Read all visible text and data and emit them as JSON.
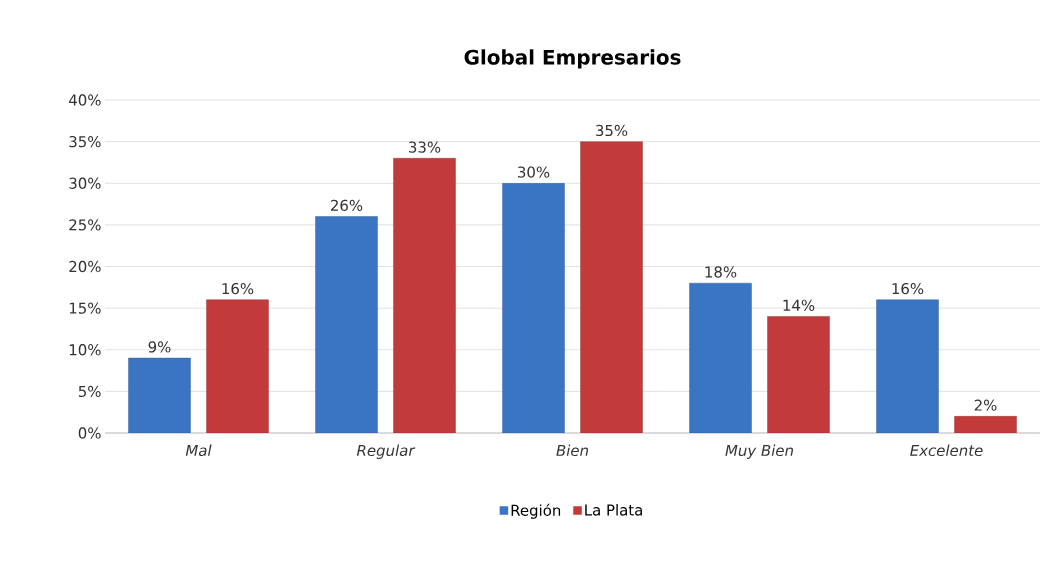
{
  "chart_data": {
    "type": "bar",
    "title": "Global Empresarios",
    "categories": [
      "Mal",
      "Regular",
      "Bien",
      "Muy Bien",
      "Excelente"
    ],
    "series": [
      {
        "name": "Región",
        "color": "#3a75c4",
        "values": [
          9,
          26,
          30,
          18,
          16
        ],
        "value_labels": [
          "9%",
          "26%",
          "30%",
          "18%",
          "16%"
        ]
      },
      {
        "name": "La Plata",
        "color": "#c23b3a",
        "values": [
          16,
          33,
          35,
          14,
          2
        ],
        "value_labels": [
          "16%",
          "33%",
          "35%",
          "14%",
          "2%"
        ]
      }
    ],
    "ylim": [
      0,
      40
    ],
    "yticks": [
      {
        "value": 0,
        "label": "0%"
      },
      {
        "value": 5,
        "label": "5%"
      },
      {
        "value": 10,
        "label": "10%"
      },
      {
        "value": 15,
        "label": "15%"
      },
      {
        "value": 20,
        "label": "20%"
      },
      {
        "value": 25,
        "label": "25%"
      },
      {
        "value": 30,
        "label": "30%"
      },
      {
        "value": 35,
        "label": "35%"
      },
      {
        "value": 40,
        "label": "40%"
      }
    ],
    "grid": "y",
    "legend": "bottom"
  }
}
